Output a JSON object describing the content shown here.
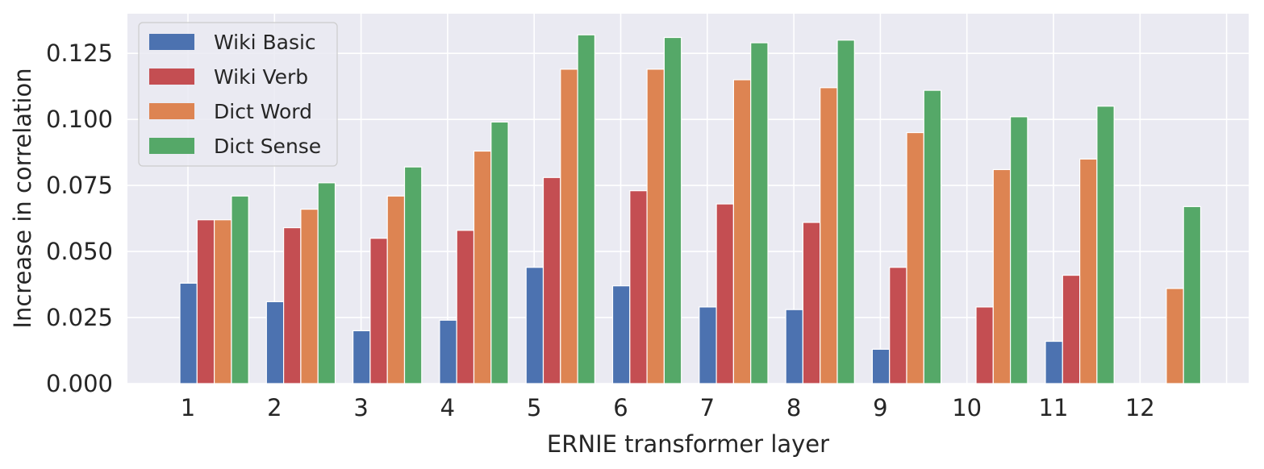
{
  "chart_data": {
    "type": "bar",
    "title": "",
    "xlabel": "ERNIE transformer layer",
    "ylabel": "Increase in correlation",
    "categories": [
      "1",
      "2",
      "3",
      "4",
      "5",
      "6",
      "7",
      "8",
      "9",
      "10",
      "11",
      "12"
    ],
    "ylim": [
      0,
      0.14
    ],
    "yticks": [
      "0.000",
      "0.025",
      "0.050",
      "0.075",
      "0.100",
      "0.125"
    ],
    "ytick_values": [
      0,
      0.025,
      0.05,
      0.075,
      0.1,
      0.125
    ],
    "grid": true,
    "legend_position": "top-left",
    "series": [
      {
        "name": "Wiki Basic",
        "color": "#4c72b0",
        "values": [
          0.038,
          0.031,
          0.02,
          0.024,
          0.044,
          0.037,
          0.029,
          0.028,
          0.013,
          0.0,
          0.016,
          0.0
        ]
      },
      {
        "name": "Wiki Verb",
        "color": "#c44e52",
        "values": [
          0.062,
          0.059,
          0.055,
          0.058,
          0.078,
          0.073,
          0.068,
          0.061,
          0.044,
          0.029,
          0.041,
          0.0
        ]
      },
      {
        "name": "Dict Word",
        "color": "#dd8452",
        "values": [
          0.062,
          0.066,
          0.071,
          0.088,
          0.119,
          0.119,
          0.115,
          0.112,
          0.095,
          0.081,
          0.085,
          0.036
        ]
      },
      {
        "name": "Dict Sense",
        "color": "#55a868",
        "values": [
          0.071,
          0.076,
          0.082,
          0.099,
          0.132,
          0.131,
          0.129,
          0.13,
          0.111,
          0.101,
          0.105,
          0.067
        ]
      }
    ]
  }
}
